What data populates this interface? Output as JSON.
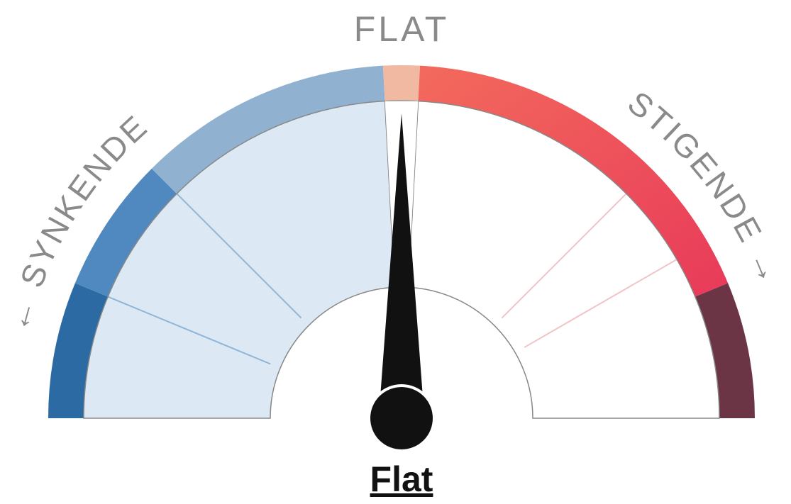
{
  "header": {
    "title": "FLAT"
  },
  "gauge": {
    "left_label": "← SYNKENDE",
    "right_label": "STIGENDE →"
  },
  "reading": "Flat"
}
